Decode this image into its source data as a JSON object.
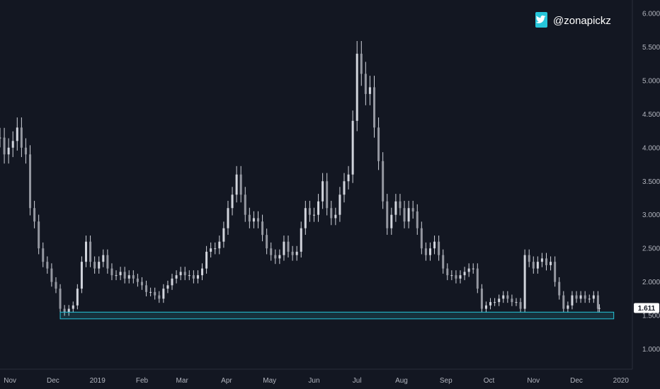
{
  "watermark": {
    "handle": "@zonapickz",
    "icon": "twitter-bird-icon"
  },
  "colors": {
    "background": "#131722",
    "candle": "#d1d4dc",
    "support_zone": "#26c6da",
    "axis_text": "#b2b5be",
    "watermark_icon_bg": "#ffffff",
    "watermark_icon_fg": "#26c6da",
    "price_tag_bg": "#ffffff"
  },
  "chart_data": {
    "type": "candlestick",
    "title": "",
    "xlabel": "",
    "ylabel": "",
    "ylim": [
      0.7,
      6.2
    ],
    "y_ticks": [
      "6.000",
      "5.500",
      "5.000",
      "4.500",
      "4.000",
      "3.500",
      "3.000",
      "2.500",
      "2.000",
      "1.500",
      "1.000"
    ],
    "x_ticks": [
      "Nov",
      "Dec",
      "2019",
      "Feb",
      "Mar",
      "Apr",
      "May",
      "Jun",
      "Jul",
      "Aug",
      "Sep",
      "Oct",
      "Nov",
      "Dec",
      "2020"
    ],
    "x_tick_dates": [
      "2018-11-01",
      "2018-12-01",
      "2019-01-01",
      "2019-02-01",
      "2019-03-01",
      "2019-04-01",
      "2019-05-01",
      "2019-06-01",
      "2019-07-01",
      "2019-08-01",
      "2019-09-01",
      "2019-10-01",
      "2019-11-01",
      "2019-12-01",
      "2020-01-01"
    ],
    "xlim": [
      "2018-10-25",
      "2020-01-09"
    ],
    "last_price": "1.611",
    "support_zone": {
      "low": 1.45,
      "high": 1.55,
      "from": "2018-12-06",
      "to": "2019-12-27"
    },
    "series": [
      {
        "values": [
          [
            "2018-10-25",
            4.15
          ],
          [
            "2018-10-28",
            3.9
          ],
          [
            "2018-10-31",
            4.0
          ],
          [
            "2018-11-03",
            4.1
          ],
          [
            "2018-11-06",
            4.3
          ],
          [
            "2018-11-09",
            4.0
          ],
          [
            "2018-11-12",
            3.9
          ],
          [
            "2018-11-15",
            3.1
          ],
          [
            "2018-11-18",
            2.9
          ],
          [
            "2018-11-21",
            2.5
          ],
          [
            "2018-11-24",
            2.3
          ],
          [
            "2018-11-27",
            2.2
          ],
          [
            "2018-11-30",
            2.0
          ],
          [
            "2018-12-03",
            1.9
          ],
          [
            "2018-12-06",
            1.6
          ],
          [
            "2018-12-09",
            1.55
          ],
          [
            "2018-12-12",
            1.6
          ],
          [
            "2018-12-15",
            1.65
          ],
          [
            "2018-12-18",
            1.9
          ],
          [
            "2018-12-21",
            2.3
          ],
          [
            "2018-12-24",
            2.6
          ],
          [
            "2018-12-27",
            2.3
          ],
          [
            "2018-12-30",
            2.2
          ],
          [
            "2019-01-02",
            2.3
          ],
          [
            "2019-01-05",
            2.4
          ],
          [
            "2019-01-08",
            2.2
          ],
          [
            "2019-01-11",
            2.1
          ],
          [
            "2019-01-14",
            2.1
          ],
          [
            "2019-01-17",
            2.15
          ],
          [
            "2019-01-20",
            2.05
          ],
          [
            "2019-01-23",
            2.1
          ],
          [
            "2019-01-26",
            2.05
          ],
          [
            "2019-01-29",
            2.0
          ],
          [
            "2019-02-01",
            1.95
          ],
          [
            "2019-02-04",
            1.85
          ],
          [
            "2019-02-07",
            1.85
          ],
          [
            "2019-02-10",
            1.8
          ],
          [
            "2019-02-13",
            1.75
          ],
          [
            "2019-02-16",
            1.9
          ],
          [
            "2019-02-19",
            1.95
          ],
          [
            "2019-02-22",
            2.05
          ],
          [
            "2019-02-25",
            2.1
          ],
          [
            "2019-02-28",
            2.15
          ],
          [
            "2019-03-03",
            2.1
          ],
          [
            "2019-03-06",
            2.1
          ],
          [
            "2019-03-09",
            2.05
          ],
          [
            "2019-03-12",
            2.1
          ],
          [
            "2019-03-15",
            2.2
          ],
          [
            "2019-03-18",
            2.45
          ],
          [
            "2019-03-21",
            2.5
          ],
          [
            "2019-03-24",
            2.5
          ],
          [
            "2019-03-27",
            2.6
          ],
          [
            "2019-03-30",
            2.8
          ],
          [
            "2019-04-02",
            3.1
          ],
          [
            "2019-04-05",
            3.3
          ],
          [
            "2019-04-08",
            3.6
          ],
          [
            "2019-04-11",
            3.3
          ],
          [
            "2019-04-14",
            3.0
          ],
          [
            "2019-04-17",
            2.9
          ],
          [
            "2019-04-20",
            2.95
          ],
          [
            "2019-04-23",
            2.9
          ],
          [
            "2019-04-26",
            2.7
          ],
          [
            "2019-04-29",
            2.5
          ],
          [
            "2019-05-02",
            2.4
          ],
          [
            "2019-05-05",
            2.35
          ],
          [
            "2019-05-08",
            2.4
          ],
          [
            "2019-05-11",
            2.6
          ],
          [
            "2019-05-14",
            2.45
          ],
          [
            "2019-05-17",
            2.4
          ],
          [
            "2019-05-20",
            2.45
          ],
          [
            "2019-05-23",
            2.8
          ],
          [
            "2019-05-26",
            3.1
          ],
          [
            "2019-05-29",
            3.0
          ],
          [
            "2019-06-01",
            3.0
          ],
          [
            "2019-06-04",
            3.2
          ],
          [
            "2019-06-07",
            3.5
          ],
          [
            "2019-06-10",
            3.1
          ],
          [
            "2019-06-13",
            2.95
          ],
          [
            "2019-06-16",
            3.0
          ],
          [
            "2019-06-19",
            3.3
          ],
          [
            "2019-06-22",
            3.5
          ],
          [
            "2019-06-25",
            3.6
          ],
          [
            "2019-06-28",
            4.4
          ],
          [
            "2019-07-01",
            5.4
          ],
          [
            "2019-07-04",
            5.1
          ],
          [
            "2019-07-07",
            4.8
          ],
          [
            "2019-07-10",
            4.9
          ],
          [
            "2019-07-13",
            4.3
          ],
          [
            "2019-07-16",
            3.8
          ],
          [
            "2019-07-19",
            3.2
          ],
          [
            "2019-07-22",
            2.8
          ],
          [
            "2019-07-25",
            3.0
          ],
          [
            "2019-07-28",
            3.2
          ],
          [
            "2019-07-31",
            3.1
          ],
          [
            "2019-08-03",
            2.9
          ],
          [
            "2019-08-06",
            3.1
          ],
          [
            "2019-08-09",
            3.05
          ],
          [
            "2019-08-12",
            2.8
          ],
          [
            "2019-08-15",
            2.5
          ],
          [
            "2019-08-18",
            2.4
          ],
          [
            "2019-08-21",
            2.5
          ],
          [
            "2019-08-24",
            2.6
          ],
          [
            "2019-08-27",
            2.4
          ],
          [
            "2019-08-30",
            2.2
          ],
          [
            "2019-09-02",
            2.1
          ],
          [
            "2019-09-05",
            2.1
          ],
          [
            "2019-09-08",
            2.05
          ],
          [
            "2019-09-11",
            2.1
          ],
          [
            "2019-09-14",
            2.15
          ],
          [
            "2019-09-17",
            2.2
          ],
          [
            "2019-09-20",
            2.2
          ],
          [
            "2019-09-23",
            1.9
          ],
          [
            "2019-09-26",
            1.6
          ],
          [
            "2019-09-29",
            1.65
          ],
          [
            "2019-10-02",
            1.7
          ],
          [
            "2019-10-05",
            1.7
          ],
          [
            "2019-10-08",
            1.75
          ],
          [
            "2019-10-11",
            1.8
          ],
          [
            "2019-10-14",
            1.75
          ],
          [
            "2019-10-17",
            1.7
          ],
          [
            "2019-10-20",
            1.7
          ],
          [
            "2019-10-23",
            1.6
          ],
          [
            "2019-10-26",
            2.4
          ],
          [
            "2019-10-29",
            2.3
          ],
          [
            "2019-11-01",
            2.2
          ],
          [
            "2019-11-04",
            2.3
          ],
          [
            "2019-11-07",
            2.35
          ],
          [
            "2019-11-10",
            2.25
          ],
          [
            "2019-11-13",
            2.3
          ],
          [
            "2019-11-16",
            2.0
          ],
          [
            "2019-11-19",
            1.8
          ],
          [
            "2019-11-22",
            1.6
          ],
          [
            "2019-11-25",
            1.65
          ],
          [
            "2019-11-28",
            1.8
          ],
          [
            "2019-12-01",
            1.75
          ],
          [
            "2019-12-04",
            1.8
          ],
          [
            "2019-12-07",
            1.75
          ],
          [
            "2019-12-10",
            1.75
          ],
          [
            "2019-12-13",
            1.8
          ],
          [
            "2019-12-16",
            1.6
          ],
          [
            "2019-12-17",
            1.611
          ]
        ]
      }
    ]
  }
}
